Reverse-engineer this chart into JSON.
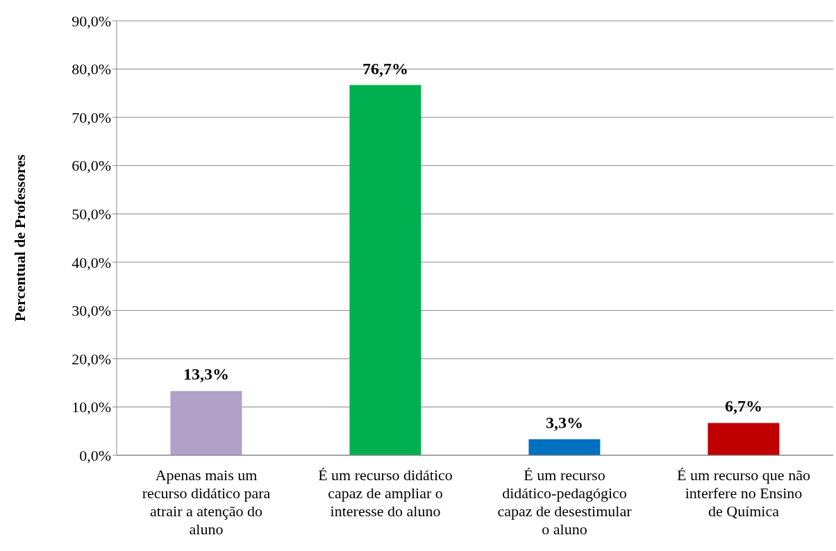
{
  "chart_data": {
    "type": "bar",
    "ylabel": "Percentual de Professores",
    "categories": [
      "Apenas mais um recurso didático para atrair a atenção do aluno",
      "É um recurso didático capaz de ampliar o interesse do aluno",
      "É um recurso didático-pedagógico capaz de desestimular o aluno",
      "É um recurso que não interfere no Ensino de Química"
    ],
    "values": [
      13.3,
      76.7,
      3.3,
      6.7
    ],
    "colors": [
      "#b1a0c7",
      "#00b050",
      "#0070c0",
      "#c00000"
    ],
    "value_labels": [
      "13,3%",
      "76,7%",
      "3,3%",
      "6,7%"
    ],
    "ylim": [
      0,
      90
    ],
    "yticks": [
      {
        "value": 0,
        "label": "0,0%"
      },
      {
        "value": 10,
        "label": "10,0%"
      },
      {
        "value": 20,
        "label": "20,0%"
      },
      {
        "value": 30,
        "label": "30,0%"
      },
      {
        "value": 40,
        "label": "40,0%"
      },
      {
        "value": 50,
        "label": "50,0%"
      },
      {
        "value": 60,
        "label": "60,0%"
      },
      {
        "value": 70,
        "label": "70,0%"
      },
      {
        "value": 80,
        "label": "80,0%"
      },
      {
        "value": 90,
        "label": "90,0%"
      }
    ],
    "grid": "y"
  }
}
